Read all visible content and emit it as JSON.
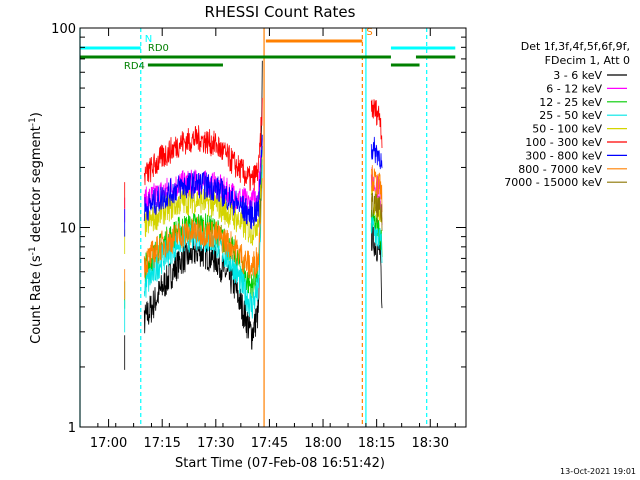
{
  "chart_data": {
    "type": "line",
    "title": "RHESSI Count Rates",
    "xlabel": "Start Time (07-Feb-08 16:51:42)",
    "ylabel_main": "Count Rate (s",
    "ylabel_sup": "-1",
    "ylabel_mid": " detector segment",
    "ylabel_sup2": "-1",
    "ylabel_end": ")",
    "yscale": "log",
    "ylim": [
      1,
      100
    ],
    "xlim_minutes": [
      -8,
      100
    ],
    "x_ticks": [
      {
        "label": "17:00",
        "minutes": 0
      },
      {
        "label": "17:15",
        "minutes": 15
      },
      {
        "label": "17:30",
        "minutes": 30
      },
      {
        "label": "17:45",
        "minutes": 45
      },
      {
        "label": "18:00",
        "minutes": 60
      },
      {
        "label": "18:15",
        "minutes": 75
      },
      {
        "label": "18:30",
        "minutes": 90
      }
    ],
    "y_ticks": [
      {
        "label": "1",
        "value": 1
      },
      {
        "label": "10",
        "value": 10
      },
      {
        "label": "100",
        "value": 100
      }
    ],
    "legend": {
      "placement": "right",
      "header": [
        "Det 1f,3f,4f,5f,6f,9f,",
        "FDecim 1, Att 0"
      ],
      "entries": [
        {
          "label": "3 - 6 keV",
          "color": "#000000"
        },
        {
          "label": "6 - 12 keV",
          "color": "#ff00ff"
        },
        {
          "label": "12 - 25 keV",
          "color": "#00cc00"
        },
        {
          "label": "25 - 50 keV",
          "color": "#00e5e5"
        },
        {
          "label": "50 - 100 keV",
          "color": "#d4d400"
        },
        {
          "label": "100 - 300 keV",
          "color": "#ff0000"
        },
        {
          "label": "300 - 800 keV",
          "color": "#0000ff"
        },
        {
          "label": "800 - 7000 keV",
          "color": "#ff8000"
        },
        {
          "label": "7000 - 15000 keV",
          "color": "#8b7500"
        }
      ]
    },
    "flags": [
      {
        "label": "N",
        "color": "#00ffff",
        "segments": [
          [
            -8,
            9
          ],
          [
            79,
            97
          ]
        ]
      },
      {
        "label": "S",
        "color": "#ff8000",
        "segments": [
          [
            44,
            71
          ]
        ]
      },
      {
        "label": "RD0",
        "color": "#008000",
        "segments": [
          [
            -8,
            79
          ],
          [
            86,
            97
          ]
        ]
      },
      {
        "label": "RD4",
        "color": "#008000",
        "segments": [
          [
            11,
            32
          ],
          [
            79,
            87
          ]
        ]
      }
    ],
    "vlines": [
      {
        "minutes": -8,
        "color": "#00ffff",
        "style": "solid"
      },
      {
        "minutes": 9,
        "color": "#00ffff",
        "style": "dashed"
      },
      {
        "minutes": 43.5,
        "color": "#ff8000",
        "style": "solid"
      },
      {
        "minutes": 71,
        "color": "#ff8000",
        "style": "dashed"
      },
      {
        "minutes": 72,
        "color": "#00ffff",
        "style": "solid"
      },
      {
        "minutes": 89,
        "color": "#00ffff",
        "style": "dashed"
      }
    ],
    "series": [
      {
        "name": "3 - 6 keV",
        "color": "#000000",
        "x": [
          4.5,
          10,
          15,
          20,
          25,
          30,
          35,
          40,
          42,
          43,
          73.5,
          75,
          76,
          76.5
        ],
        "y": [
          2.4,
          3.4,
          5.0,
          6.8,
          7.6,
          6.9,
          5.2,
          2.9,
          3.8,
          60,
          9.0,
          8.0,
          7.5,
          3.5
        ]
      },
      {
        "name": "6 - 12 keV",
        "color": "#ff00ff",
        "x": [
          4.5,
          10,
          15,
          20,
          25,
          30,
          35,
          40,
          42,
          43,
          73.5,
          75,
          76,
          76.5
        ],
        "y": [
          12.5,
          13.5,
          15.0,
          16.5,
          16.8,
          16.2,
          14.5,
          13.0,
          15.5,
          30,
          17.5,
          16.0,
          15.0,
          12.0
        ]
      },
      {
        "name": "12 - 25 keV",
        "color": "#00cc00",
        "x": [
          4.5,
          10,
          15,
          20,
          25,
          30,
          35,
          40,
          42,
          43,
          73.5,
          75,
          76,
          76.5
        ],
        "y": [
          4.5,
          6.2,
          8.2,
          9.8,
          10.3,
          9.6,
          7.4,
          5.0,
          6.2,
          22,
          11.0,
          10.0,
          9.5,
          8.0
        ]
      },
      {
        "name": "25 - 50 keV",
        "color": "#00e5e5",
        "x": [
          4.5,
          10,
          15,
          20,
          25,
          30,
          35,
          40,
          42,
          43,
          73.5,
          75,
          76,
          76.5
        ],
        "y": [
          3.6,
          5.0,
          7.0,
          8.6,
          9.1,
          8.4,
          6.4,
          4.0,
          5.0,
          18,
          10.5,
          9.0,
          8.6,
          7.6
        ]
      },
      {
        "name": "50 - 100 keV",
        "color": "#d4d400",
        "x": [
          4.5,
          10,
          15,
          20,
          25,
          30,
          35,
          40,
          42,
          43,
          73.5,
          75,
          76,
          76.5
        ],
        "y": [
          8.5,
          10.2,
          12.0,
          13.4,
          13.8,
          13.0,
          11.3,
          9.4,
          11.0,
          25,
          14.0,
          13.0,
          12.5,
          11.0
        ]
      },
      {
        "name": "100 - 300 keV",
        "color": "#ff0000",
        "x": [
          4.5,
          10,
          15,
          20,
          25,
          30,
          35,
          40,
          42,
          43,
          73.5,
          75,
          76,
          76.5
        ],
        "y": [
          14.5,
          18.0,
          22.5,
          26.5,
          28.0,
          26.0,
          21.0,
          17.0,
          19.5,
          40,
          40.0,
          38.0,
          36.0,
          28.0
        ]
      },
      {
        "name": "300 - 800 keV",
        "color": "#0000ff",
        "x": [
          4.5,
          10,
          15,
          20,
          25,
          30,
          35,
          40,
          42,
          43,
          73.5,
          75,
          76,
          76.5
        ],
        "y": [
          10.5,
          12.3,
          14.2,
          16.0,
          16.5,
          15.8,
          13.5,
          11.5,
          12.5,
          28,
          25.0,
          24.0,
          23.0,
          19.0
        ]
      },
      {
        "name": "800 - 7000 keV",
        "color": "#ff8000",
        "x": [
          4.5,
          10,
          15,
          20,
          25,
          30,
          35,
          40,
          42,
          43,
          73.5,
          75,
          76,
          76.5
        ],
        "y": [
          5.2,
          6.6,
          8.2,
          9.2,
          9.6,
          9.2,
          8.0,
          6.2,
          7.2,
          20,
          18.0,
          16.5,
          16.0,
          14.0
        ]
      },
      {
        "name": "7000 - 15000 keV",
        "color": "#8b7500",
        "x": [
          73.5,
          75,
          76,
          76.5
        ],
        "y": [
          13.0,
          12.5,
          12.0,
          11.0
        ]
      }
    ],
    "timestamp": "13-Oct-2021 19:01",
    "grid": false
  }
}
